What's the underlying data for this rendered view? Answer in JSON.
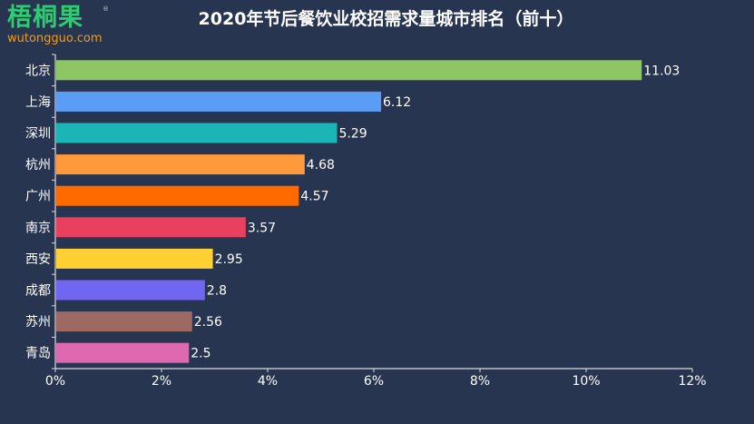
{
  "logo": {
    "cn": "梧桐果",
    "en": "wutongguo.com",
    "reg": "®"
  },
  "chart_data": {
    "type": "bar",
    "orientation": "horizontal",
    "title": "2020年节后餐饮业校招需求量城市排名（前十）",
    "categories": [
      "北京",
      "上海",
      "深圳",
      "杭州",
      "广州",
      "南京",
      "西安",
      "成都",
      "苏州",
      "青岛"
    ],
    "values": [
      11.03,
      6.12,
      5.29,
      4.68,
      4.57,
      3.57,
      2.95,
      2.8,
      2.56,
      2.5
    ],
    "value_labels": [
      "11.03",
      "6.12",
      "5.29",
      "4.68",
      "4.57",
      "3.57",
      "2.95",
      "2.8",
      "2.56",
      "2.5"
    ],
    "colors": [
      "#8dc663",
      "#5b9cf6",
      "#1bb5b5",
      "#ff9a3c",
      "#ff6a00",
      "#e8405e",
      "#ffd034",
      "#7166f2",
      "#9c6a62",
      "#de69b0"
    ],
    "xlim": [
      0,
      12
    ],
    "xticks": [
      "0%",
      "2%",
      "4%",
      "6%",
      "8%",
      "10%",
      "12%"
    ],
    "xlabel": "",
    "ylabel": "",
    "grid": false,
    "background": "#283550"
  }
}
